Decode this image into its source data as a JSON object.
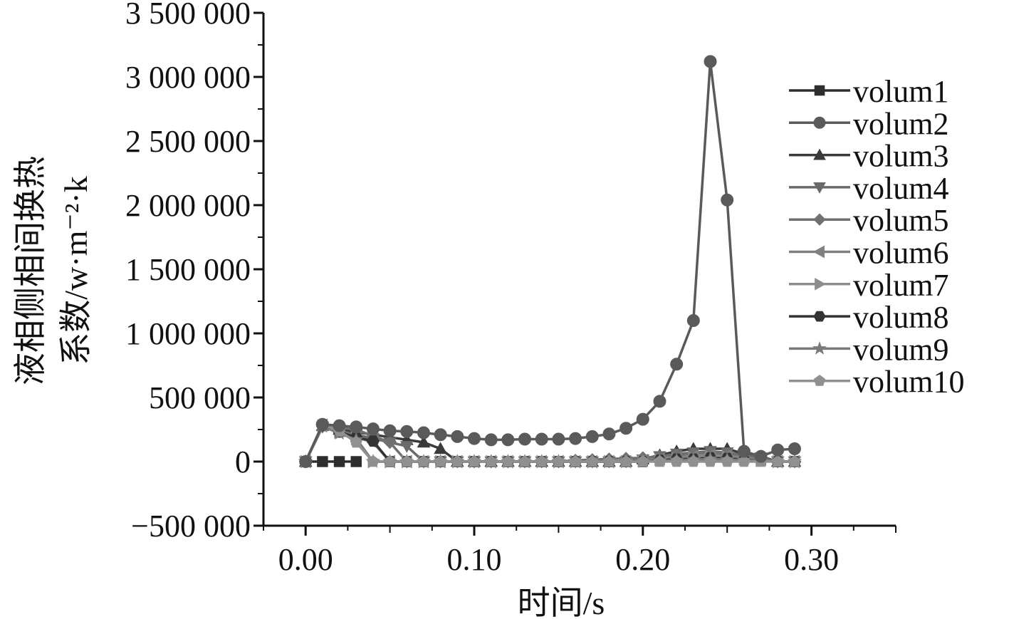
{
  "chart_data": {
    "type": "line",
    "title": "",
    "xlabel": "时间/s",
    "ylabel_line1": "液相侧相间换热",
    "ylabel_line2": "系数/w·m⁻²·k",
    "xlim": [
      -0.025,
      0.35
    ],
    "ylim": [
      -500000,
      3500000
    ],
    "x_ticks": [
      0.0,
      0.1,
      0.2,
      0.3
    ],
    "x_tick_labels": [
      "0.00",
      "0.10",
      "0.20",
      "0.30"
    ],
    "y_ticks": [
      -500000,
      0,
      500000,
      1000000,
      1500000,
      2000000,
      2500000,
      3000000,
      3500000
    ],
    "y_tick_labels": [
      "−500 000",
      "0",
      "500 000",
      "1 000 000",
      "1 500 000",
      "2 000 000",
      "2 500 000",
      "3 000 000",
      "3 500 000"
    ],
    "grid": false,
    "legend_position": "right",
    "colors": {
      "volum1": "#2e2e2e",
      "volum2": "#5a5a5a",
      "volum3": "#3a3a3a",
      "volum4": "#6a6a6a",
      "volum5": "#707070",
      "volum6": "#808080",
      "volum7": "#8c8c8c",
      "volum8": "#333333",
      "volum9": "#7a7a7a",
      "volum10": "#909090"
    },
    "series": [
      {
        "name": "volum1",
        "marker": "square",
        "x": [
          0.0,
          0.01,
          0.02,
          0.03
        ],
        "y": [
          0,
          0,
          0,
          0
        ]
      },
      {
        "name": "volum2",
        "marker": "circle",
        "x": [
          0.0,
          0.01,
          0.02,
          0.03,
          0.04,
          0.05,
          0.06,
          0.07,
          0.08,
          0.09,
          0.1,
          0.11,
          0.12,
          0.13,
          0.14,
          0.15,
          0.16,
          0.17,
          0.18,
          0.19,
          0.2,
          0.21,
          0.22,
          0.23,
          0.24,
          0.25,
          0.26,
          0.27,
          0.28,
          0.29
        ],
        "y": [
          0,
          290000,
          280000,
          270000,
          255000,
          240000,
          235000,
          225000,
          210000,
          195000,
          180000,
          170000,
          170000,
          175000,
          175000,
          175000,
          180000,
          195000,
          215000,
          260000,
          330000,
          470000,
          760000,
          1100000,
          3120000,
          2040000,
          80000,
          40000,
          90000,
          100000
        ]
      },
      {
        "name": "volum3",
        "marker": "triangle-up",
        "x": [
          0.0,
          0.01,
          0.02,
          0.03,
          0.04,
          0.05,
          0.06,
          0.07,
          0.08,
          0.09,
          0.1,
          0.11,
          0.12,
          0.13,
          0.14,
          0.15,
          0.16,
          0.17,
          0.18,
          0.19,
          0.2,
          0.21,
          0.22,
          0.23,
          0.24,
          0.25,
          0.26,
          0.27,
          0.28,
          0.29
        ],
        "y": [
          0,
          280000,
          250000,
          230000,
          210000,
          190000,
          170000,
          150000,
          100000,
          0,
          0,
          0,
          0,
          0,
          0,
          0,
          0,
          0,
          0,
          0,
          20000,
          50000,
          80000,
          100000,
          100000,
          100000,
          60000,
          40000,
          0,
          0
        ]
      },
      {
        "name": "volum4",
        "marker": "triangle-down",
        "x": [
          0.0,
          0.01,
          0.02,
          0.03,
          0.04,
          0.05,
          0.06,
          0.07,
          0.08,
          0.09,
          0.1,
          0.11,
          0.12,
          0.13,
          0.14,
          0.15,
          0.16,
          0.17,
          0.18,
          0.19,
          0.2,
          0.21,
          0.22,
          0.23,
          0.24,
          0.25,
          0.26,
          0.27,
          0.28,
          0.29
        ],
        "y": [
          0,
          270000,
          240000,
          210000,
          180000,
          150000,
          120000,
          0,
          0,
          0,
          0,
          0,
          0,
          0,
          0,
          0,
          0,
          0,
          0,
          0,
          15000,
          40000,
          60000,
          70000,
          80000,
          70000,
          50000,
          30000,
          0,
          0
        ]
      },
      {
        "name": "volum5",
        "marker": "diamond",
        "x": [
          0.0,
          0.01,
          0.02,
          0.03,
          0.04,
          0.05,
          0.06,
          0.07,
          0.08,
          0.09,
          0.1,
          0.11,
          0.12,
          0.13,
          0.14,
          0.15,
          0.16,
          0.17,
          0.18,
          0.19,
          0.2,
          0.21,
          0.22,
          0.23,
          0.24,
          0.25,
          0.26,
          0.27,
          0.28,
          0.29
        ],
        "y": [
          0,
          275000,
          265000,
          250000,
          200000,
          150000,
          0,
          0,
          0,
          0,
          0,
          0,
          0,
          0,
          0,
          0,
          10000,
          15000,
          20000,
          25000,
          30000,
          40000,
          50000,
          60000,
          70000,
          60000,
          40000,
          20000,
          0,
          0
        ]
      },
      {
        "name": "volum6",
        "marker": "triangle-left",
        "x": [
          0.0,
          0.01,
          0.02,
          0.03,
          0.04,
          0.05,
          0.06,
          0.07,
          0.08,
          0.09,
          0.1,
          0.11,
          0.12,
          0.13,
          0.14,
          0.15,
          0.16,
          0.17,
          0.18,
          0.19,
          0.2,
          0.21,
          0.22,
          0.23,
          0.24,
          0.25,
          0.26,
          0.27,
          0.28,
          0.29
        ],
        "y": [
          0,
          285000,
          240000,
          190000,
          150000,
          0,
          0,
          0,
          0,
          0,
          0,
          0,
          0,
          0,
          0,
          0,
          0,
          0,
          0,
          0,
          10000,
          20000,
          30000,
          40000,
          50000,
          45000,
          30000,
          15000,
          0,
          0
        ]
      },
      {
        "name": "volum7",
        "marker": "triangle-right",
        "x": [
          0.0,
          0.01,
          0.02,
          0.03,
          0.04,
          0.05,
          0.06,
          0.07,
          0.08,
          0.09,
          0.1,
          0.11,
          0.12,
          0.13,
          0.14,
          0.15,
          0.16,
          0.17,
          0.18,
          0.19,
          0.2,
          0.21,
          0.22,
          0.23,
          0.24,
          0.25,
          0.26,
          0.27,
          0.28,
          0.29
        ],
        "y": [
          0,
          280000,
          230000,
          180000,
          0,
          0,
          0,
          0,
          0,
          0,
          0,
          0,
          0,
          0,
          0,
          0,
          0,
          0,
          0,
          0,
          5000,
          15000,
          25000,
          30000,
          40000,
          35000,
          20000,
          10000,
          0,
          0
        ]
      },
      {
        "name": "volum8",
        "marker": "hexagon",
        "x": [
          0.0,
          0.01,
          0.02,
          0.03,
          0.04,
          0.05,
          0.06,
          0.07,
          0.08,
          0.09,
          0.1,
          0.11,
          0.12,
          0.13,
          0.14,
          0.15,
          0.16,
          0.17,
          0.18,
          0.19,
          0.2,
          0.21,
          0.22,
          0.23,
          0.24,
          0.25,
          0.26,
          0.27,
          0.28,
          0.29
        ],
        "y": [
          0,
          280000,
          230000,
          190000,
          160000,
          0,
          0,
          0,
          0,
          0,
          0,
          0,
          0,
          0,
          0,
          0,
          0,
          0,
          0,
          0,
          0,
          10000,
          20000,
          20000,
          30000,
          25000,
          15000,
          5000,
          0,
          0
        ]
      },
      {
        "name": "volum9",
        "marker": "star",
        "x": [
          0.0,
          0.01,
          0.02,
          0.03,
          0.04,
          0.05,
          0.06,
          0.07,
          0.08,
          0.09,
          0.1,
          0.11,
          0.12,
          0.13,
          0.14,
          0.15,
          0.16,
          0.17,
          0.18,
          0.19,
          0.2,
          0.21,
          0.22,
          0.23,
          0.24,
          0.25,
          0.26,
          0.27,
          0.28,
          0.29
        ],
        "y": [
          0,
          275000,
          220000,
          170000,
          0,
          0,
          0,
          0,
          0,
          0,
          0,
          0,
          0,
          0,
          0,
          0,
          0,
          0,
          0,
          0,
          0,
          5000,
          10000,
          15000,
          20000,
          15000,
          10000,
          5000,
          0,
          0
        ]
      },
      {
        "name": "volum10",
        "marker": "pentagon",
        "x": [
          0.0,
          0.01,
          0.02,
          0.03,
          0.04,
          0.05,
          0.06,
          0.07,
          0.08,
          0.09,
          0.1,
          0.11,
          0.12,
          0.13,
          0.14,
          0.15,
          0.16,
          0.17,
          0.18,
          0.19,
          0.2,
          0.21,
          0.22,
          0.23,
          0.24,
          0.25,
          0.26,
          0.27,
          0.28,
          0.29
        ],
        "y": [
          0,
          290000,
          240000,
          150000,
          0,
          0,
          0,
          0,
          0,
          0,
          0,
          0,
          0,
          0,
          0,
          0,
          0,
          0,
          0,
          0,
          0,
          0,
          0,
          0,
          0,
          0,
          0,
          0,
          0,
          0
        ]
      }
    ]
  }
}
